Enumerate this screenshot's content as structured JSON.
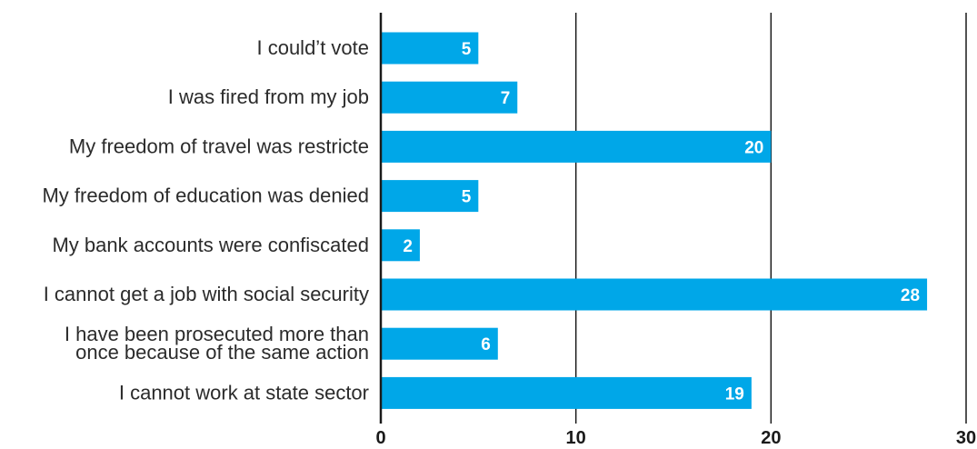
{
  "chart_data": {
    "type": "bar",
    "orientation": "horizontal",
    "categories": [
      [
        "I could’t vote"
      ],
      [
        "I was fired from my job"
      ],
      [
        "My freedom of travel was restricte"
      ],
      [
        "My freedom of education was denied"
      ],
      [
        "My bank accounts were confiscated"
      ],
      [
        "I cannot get a job with social security"
      ],
      [
        "I have been prosecuted more than",
        "once because of the same action"
      ],
      [
        "I cannot work at state sector"
      ]
    ],
    "values": [
      5,
      7,
      20,
      5,
      2,
      28,
      6,
      19
    ],
    "data_labels": [
      "5",
      "7",
      "20",
      "5",
      "2",
      "28",
      "6",
      "19"
    ],
    "xlim": [
      0,
      30
    ],
    "xticks": [
      0,
      10,
      20,
      30
    ],
    "xtick_labels": [
      "0",
      "10",
      "20",
      "30"
    ],
    "title": "",
    "xlabel": "",
    "ylabel": "",
    "grid": true,
    "legend": "none",
    "colors": {
      "bar": "#00a7e8",
      "grid": "#1a1a1a",
      "label": "#2b2b2b"
    }
  }
}
